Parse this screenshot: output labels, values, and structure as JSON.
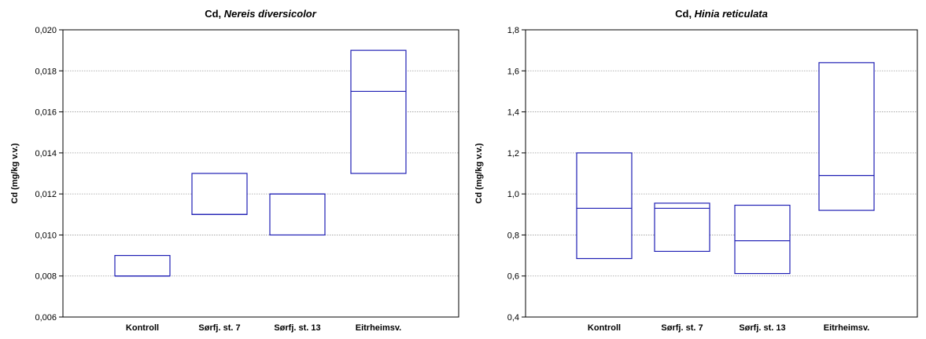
{
  "chart_data": [
    {
      "type": "box",
      "title": {
        "prefix": "Cd, ",
        "species": "Nereis diversicolor"
      },
      "xlabel": "",
      "ylabel": "Cd (mg/kg v.v.)",
      "ylim": [
        0.006,
        0.02
      ],
      "yticks": [
        0.006,
        0.008,
        0.01,
        0.012,
        0.014,
        0.016,
        0.018,
        0.02
      ],
      "ytick_labels": [
        "0,006",
        "0,008",
        "0,010",
        "0,012",
        "0,014",
        "0,016",
        "0,018",
        "0,020"
      ],
      "grid": true,
      "categories": [
        "Kontroll",
        "Sørfj. st. 7",
        "Sørfj. st. 13",
        "Eitrheimsv."
      ],
      "boxes": [
        {
          "low": 0.008,
          "median": 0.008,
          "high": 0.009
        },
        {
          "low": 0.011,
          "median": 0.011,
          "high": 0.013
        },
        {
          "low": 0.01,
          "median": 0.012,
          "high": 0.012
        },
        {
          "low": 0.013,
          "median": 0.017,
          "high": 0.019
        }
      ],
      "box_color": "#1f1fb4"
    },
    {
      "type": "box",
      "title": {
        "prefix": "Cd, ",
        "species": "Hinia reticulata"
      },
      "xlabel": "",
      "ylabel": "Cd (mg/kg v.v.)",
      "ylim": [
        0.4,
        1.8
      ],
      "yticks": [
        0.4,
        0.6,
        0.8,
        1.0,
        1.2,
        1.4,
        1.6,
        1.8
      ],
      "ytick_labels": [
        "0,4",
        "0,6",
        "0,8",
        "1,0",
        "1,2",
        "1,4",
        "1,6",
        "1,8"
      ],
      "grid": true,
      "categories": [
        "Kontroll",
        "Sørfj. st. 7",
        "Sørfj. st. 13",
        "Eitrheimsv."
      ],
      "boxes": [
        {
          "low": 0.685,
          "median": 0.93,
          "high": 1.2
        },
        {
          "low": 0.72,
          "median": 0.93,
          "high": 0.955
        },
        {
          "low": 0.612,
          "median": 0.772,
          "high": 0.945
        },
        {
          "low": 0.92,
          "median": 1.09,
          "high": 1.64
        }
      ],
      "box_color": "#1f1fb4"
    }
  ]
}
